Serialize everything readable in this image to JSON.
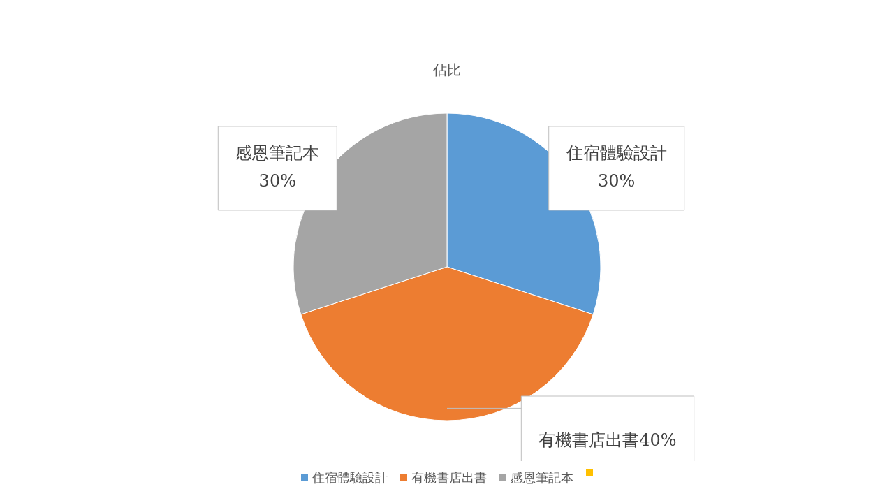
{
  "chart_data": {
    "type": "pie",
    "title": "佔比",
    "categories": [
      "住宿體驗設計",
      "有機書店出書",
      "感恩筆記本"
    ],
    "values": [
      30,
      40,
      30
    ],
    "colors": [
      "#5b9bd5",
      "#ed7d31",
      "#a5a5a5"
    ],
    "value_labels": [
      "30%",
      "40%",
      "30%"
    ],
    "legend": "bottom"
  }
}
